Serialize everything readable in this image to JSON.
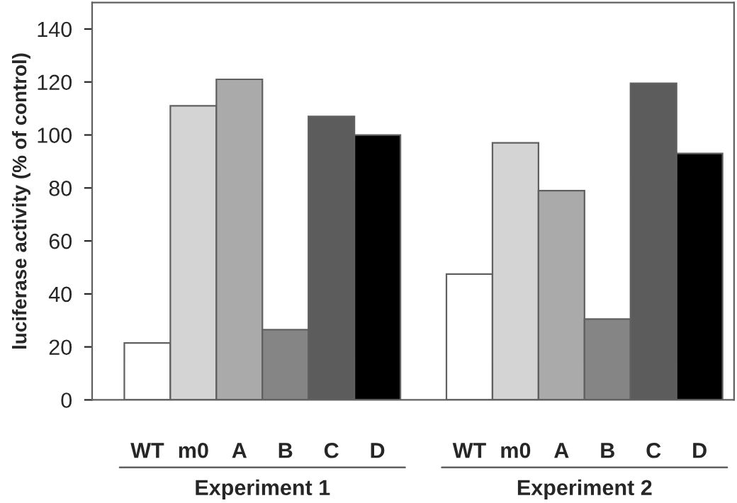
{
  "chart_data": {
    "type": "bar",
    "ylabel": "luciferase activity (% of control)",
    "categories": [
      "WT",
      "m0",
      "A",
      "B",
      "C",
      "D",
      null,
      "WT",
      "m0",
      "A",
      "B",
      "C",
      "D"
    ],
    "values": [
      21.5,
      111,
      121,
      26.5,
      107,
      100,
      null,
      47.5,
      97,
      79,
      30.5,
      119.5,
      93
    ],
    "colors": [
      "#ffffff",
      "#d4d4d4",
      "#aaaaaa",
      "#858585",
      "#5c5c5c",
      "#000000",
      null,
      "#ffffff",
      "#d4d4d4",
      "#aaaaaa",
      "#858585",
      "#5c5c5c",
      "#000000"
    ],
    "ylim": [
      0,
      150
    ],
    "yticks": [
      0,
      20,
      40,
      60,
      80,
      100,
      120,
      140
    ],
    "grid": false,
    "annotations": [
      "Experiment 1",
      "Experiment 2"
    ]
  }
}
